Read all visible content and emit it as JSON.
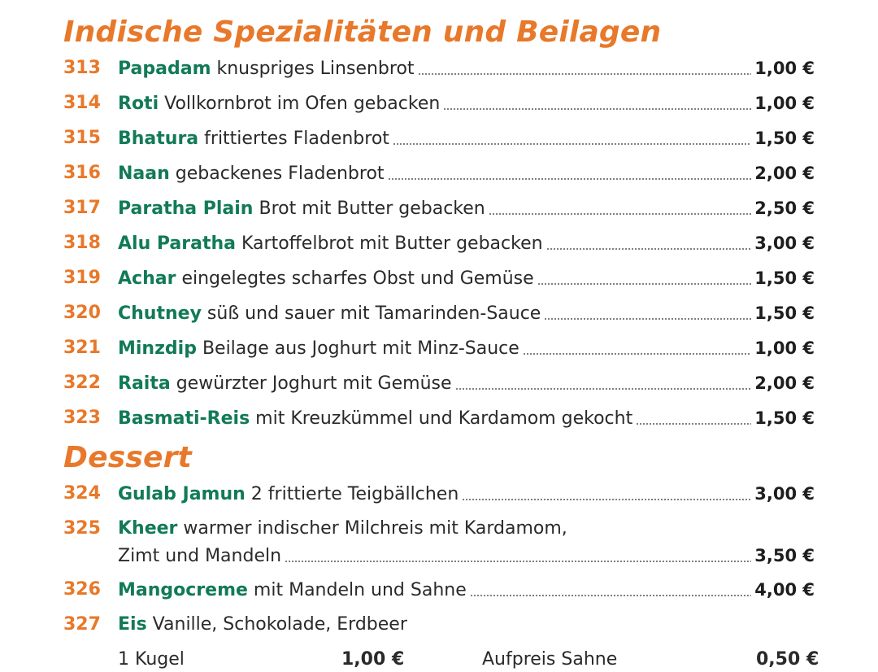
{
  "sections": [
    {
      "title": "Indische Spezialitäten und Beilagen"
    },
    {
      "title": "Dessert"
    }
  ],
  "items": [
    {
      "num": "313",
      "name": "Papadam",
      "desc": "knuspriges Linsenbrot",
      "price": "1,00 €"
    },
    {
      "num": "314",
      "name": "Roti",
      "desc": "Vollkornbrot im Ofen gebacken",
      "price": "1,00 €"
    },
    {
      "num": "315",
      "name": "Bhatura",
      "desc": "frittiertes Fladenbrot",
      "price": "1,50 €"
    },
    {
      "num": "316",
      "name": "Naan",
      "desc": "gebackenes Fladenbrot",
      "price": "2,00 €"
    },
    {
      "num": "317",
      "name": "Paratha Plain",
      "desc": "Brot mit Butter gebacken",
      "price": "2,50 €"
    },
    {
      "num": "318",
      "name": "Alu Paratha",
      "desc": "Kartoffelbrot mit Butter gebacken",
      "price": "3,00 €"
    },
    {
      "num": "319",
      "name": "Achar",
      "desc": "eingelegtes scharfes Obst und Gemüse",
      "price": "1,50 €"
    },
    {
      "num": "320",
      "name": "Chutney",
      "desc": "süß und sauer mit Tamarinden-Sauce",
      "price": "1,50 €"
    },
    {
      "num": "321",
      "name": "Minzdip",
      "desc": "Beilage aus Joghurt mit Minz-Sauce",
      "price": "1,00 €"
    },
    {
      "num": "322",
      "name": "Raita",
      "desc": "gewürzter Joghurt mit Gemüse",
      "price": "2,00 €"
    },
    {
      "num": "323",
      "name": "Basmati-Reis",
      "desc": "mit Kreuzkümmel und Kardamom gekocht",
      "price": "1,50 €"
    },
    {
      "num": "324",
      "name": "Gulab Jamun",
      "desc": "2 frittierte Teigbällchen",
      "price": "3,00 €"
    },
    {
      "num": "325",
      "name": "Kheer",
      "desc": "warmer indischer Milchreis mit Kardamom,",
      "desc2": "Zimt und Mandeln",
      "price": "3,50 €"
    },
    {
      "num": "326",
      "name": "Mangocreme",
      "desc": "mit Mandeln und Sahne",
      "price": "4,00 €"
    },
    {
      "num": "327",
      "name": "Eis",
      "desc": "Vanille, Schokolade, Erdbeer"
    }
  ],
  "partial_row": {
    "label1": "1 Kugel",
    "price1": "1,00 €",
    "label2": "Aufpreis Sahne",
    "price2": "0,50 €"
  }
}
